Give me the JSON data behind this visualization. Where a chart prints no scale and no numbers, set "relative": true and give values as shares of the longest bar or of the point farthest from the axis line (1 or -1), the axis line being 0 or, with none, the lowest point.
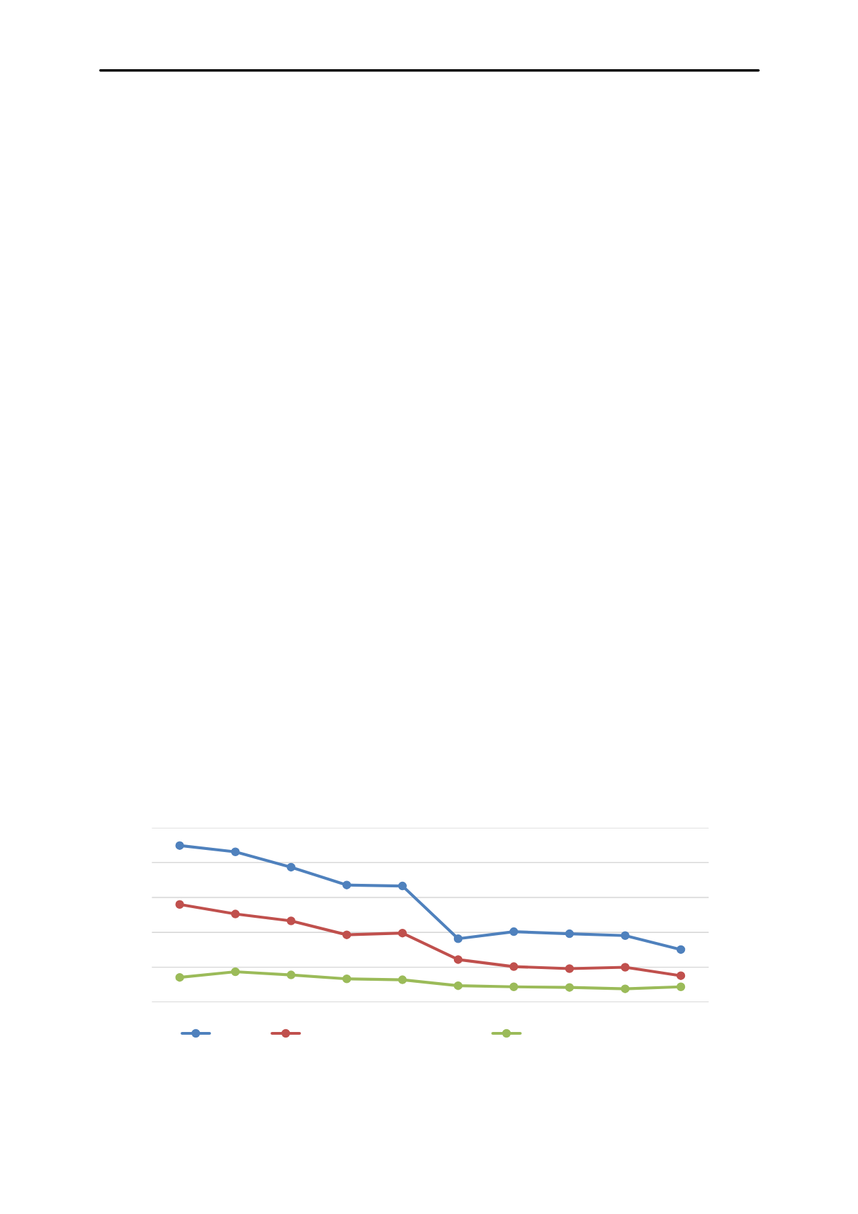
{
  "chart_data": {
    "type": "line",
    "relative": true,
    "categories": [
      null,
      null,
      null,
      null,
      null,
      null,
      null,
      null,
      null,
      null
    ],
    "series": [
      {
        "color": "#4f81bd",
        "values": [
          1,
          0.96,
          0.862,
          0.748,
          0.742,
          0.405,
          0.45,
          0.437,
          0.425,
          0.336
        ]
      },
      {
        "color": "#c0504d",
        "values": [
          0.624,
          0.563,
          0.519,
          0.43,
          0.441,
          0.272,
          0.227,
          0.214,
          0.223,
          0.169
        ]
      },
      {
        "color": "#9bbb59",
        "values": [
          0.158,
          0.194,
          0.174,
          0.149,
          0.143,
          0.105,
          0.098,
          0.094,
          0.085,
          0.098
        ]
      }
    ],
    "marker": "circle",
    "line_style": "solid",
    "grid": "y"
  }
}
